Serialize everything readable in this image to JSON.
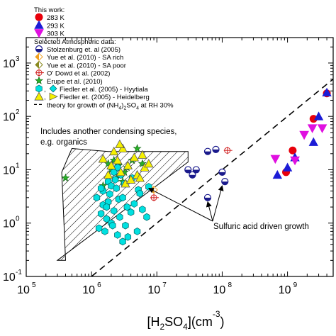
{
  "chart_data": {
    "type": "scatter",
    "xlabel": "[H2SO4](cm-3)",
    "xscale": "log",
    "yscale": "log",
    "xlim": [
      100000,
      5000000000
    ],
    "ylim": [
      0.1,
      3000
    ],
    "x_ticks": [
      {
        "value": 100000,
        "base": "10",
        "exp": "5"
      },
      {
        "value": 1000000,
        "base": "10",
        "exp": "6"
      },
      {
        "value": 10000000,
        "base": "10",
        "exp": "7"
      },
      {
        "value": 100000000,
        "base": "10",
        "exp": "8"
      },
      {
        "value": 1000000000,
        "base": "10",
        "exp": "9"
      }
    ],
    "y_ticks": [
      {
        "value": 0.1,
        "base": "10",
        "exp": "-1"
      },
      {
        "value": 1,
        "base": "10",
        "exp": "0"
      },
      {
        "value": 10,
        "base": "10",
        "exp": "1"
      },
      {
        "value": 100,
        "base": "10",
        "exp": "2"
      },
      {
        "value": 1000,
        "base": "10",
        "exp": "3"
      }
    ],
    "legend_lines": [
      {
        "text": "This work:",
        "symbol": ""
      },
      {
        "text": "283 K",
        "symbol": "circle",
        "color": "#e8000b"
      },
      {
        "text": "293 K",
        "symbol": "triangle",
        "color": "#1c1cd6"
      },
      {
        "text": "303 K",
        "symbol": "triangle-down",
        "color": "#e010e0"
      },
      {
        "text": "Selected Atmospheric data:",
        "symbol": ""
      },
      {
        "text": "Stolzenburg et. al (2005)",
        "symbol": "half-circle"
      },
      {
        "text": "Yue et al. (2010) - SA rich",
        "symbol": "half-diamond-orange"
      },
      {
        "text": "Yue et al. (2010) - SA poor",
        "symbol": "half-diamond-olive"
      },
      {
        "text": "O' Dowd et al. (2002)",
        "symbol": "crossed-circle"
      },
      {
        "text": "Erupe et al. (2010)",
        "symbol": "star"
      },
      {
        "text": ", Fiedler et al. (2005) - Hyytiala",
        "symbol": "hex-diamond"
      },
      {
        "text": ", Fiedler et. (2005) - Heidelberg",
        "symbol": "tri-tri"
      },
      {
        "text": "theory for growth of (NH4)2SO4 at RH 30%",
        "symbol": "dashed"
      }
    ],
    "annotations": {
      "organics_line1": "Includes another condensing species,",
      "organics_line2": "e.g. organics",
      "sulfuric": "Sulfuric acid driven growth"
    },
    "series": [
      {
        "name": "283 K",
        "marker": "circle",
        "color": "#e8000b",
        "x": [
          950000000,
          1200000000,
          2500000000,
          4000000000
        ],
        "y": [
          9,
          23,
          90,
          270
        ]
      },
      {
        "name": "293 K",
        "marker": "triangle",
        "color": "#1c1cd6",
        "x": [
          700000000,
          1000000000,
          1300000000,
          2500000000,
          3000000000,
          4000000000
        ],
        "y": [
          8,
          11,
          17,
          33,
          100,
          280
        ]
      },
      {
        "name": "303 K",
        "marker": "triangle-down",
        "color": "#e010e0",
        "x": [
          650000000,
          1300000000,
          1800000000,
          2400000000,
          3400000000
        ],
        "y": [
          16,
          15,
          45,
          60,
          60
        ]
      },
      {
        "name": "Stolzenburg et. al (2005)",
        "marker": "half-circle",
        "color": "#1a1a8c",
        "x": [
          30000000,
          40000000,
          60000000,
          80000000,
          100000000,
          110000000,
          60000000,
          35000000
        ],
        "y": [
          10,
          10,
          22,
          24,
          9,
          6,
          3,
          8
        ]
      },
      {
        "name": "Yue et al. (2010) - SA rich",
        "marker": "half-diamond",
        "color": "#f0a020",
        "x": [
          9000000
        ],
        "y": [
          4.2
        ]
      },
      {
        "name": "O' Dowd et al. (2002)",
        "marker": "crossed-circle",
        "color": "#d02020",
        "x": [
          9000000,
          120000000
        ],
        "y": [
          3,
          23
        ]
      },
      {
        "name": "Erupe et al. (2010)",
        "marker": "star",
        "color": "#28b028",
        "x": [
          400000,
          1800000,
          2000000,
          2200000,
          2400000,
          2600000,
          3000000,
          3200000,
          3500000,
          4200000,
          5000000,
          6000000,
          1500000,
          2800000
        ],
        "y": [
          7,
          13,
          10,
          15,
          7,
          12,
          6,
          9,
          11,
          15,
          25,
          13,
          5,
          8
        ]
      },
      {
        "name": "Fiedler et al. (2005) - Hyytiala",
        "marker": "hexagon",
        "color": "#00e0e0",
        "x": [
          1200000,
          1300000,
          1400000,
          1500000,
          1500000,
          1600000,
          1700000,
          1800000,
          1800000,
          1900000,
          2000000,
          2000000,
          2100000,
          2200000,
          2300000,
          2400000,
          2500000,
          2600000,
          2700000,
          2800000,
          3000000,
          3000000,
          3200000,
          3500000,
          3600000,
          4000000,
          4500000,
          5000000,
          5200000,
          5500000,
          6000000,
          7000000,
          7500000,
          2200000,
          1700000,
          2500000,
          3300000,
          4200000,
          1400000
        ],
        "y": [
          3,
          0.8,
          1.5,
          2.2,
          4,
          0.7,
          1.2,
          2.5,
          6,
          3.5,
          1,
          5,
          0.9,
          1.7,
          6.5,
          4.5,
          0.6,
          2.8,
          1.3,
          8,
          3,
          0.45,
          5.5,
          2,
          0.55,
          1.6,
          2.3,
          0.7,
          4.2,
          3.6,
          1.8,
          1.3,
          4.8,
          9,
          2,
          11,
          0.9,
          7,
          4.5
        ]
      },
      {
        "name": "Fiedler et. (2005) - Heidelberg",
        "marker": "triangle",
        "color": "#f5f000",
        "x": [
          1500000,
          1800000,
          2000000,
          2200000,
          2500000,
          2800000,
          3000000,
          3300000,
          3600000,
          4000000,
          4500000,
          5000000,
          5500000,
          6000000,
          6500000,
          7500000,
          2700000
        ],
        "y": [
          16,
          8,
          12,
          22,
          15,
          9,
          25,
          5.5,
          12,
          6.5,
          17,
          8,
          7,
          19,
          11,
          13,
          30
        ]
      }
    ],
    "theory_line": {
      "x": [
        1000000,
        5000000000
      ],
      "y": [
        0.1,
        500
      ]
    },
    "organics_region": {
      "x": [
        350000,
        500000,
        1800000,
        30000000,
        30000000,
        300000,
        400000
      ],
      "y": [
        9,
        25,
        22,
        22,
        14,
        0.2,
        0.2
      ]
    },
    "arrow_targets": [
      {
        "x": 7500000,
        "y": 4.5
      },
      {
        "x": 60000000,
        "y": 2.5
      },
      {
        "x": 100000000,
        "y": 5
      }
    ]
  }
}
